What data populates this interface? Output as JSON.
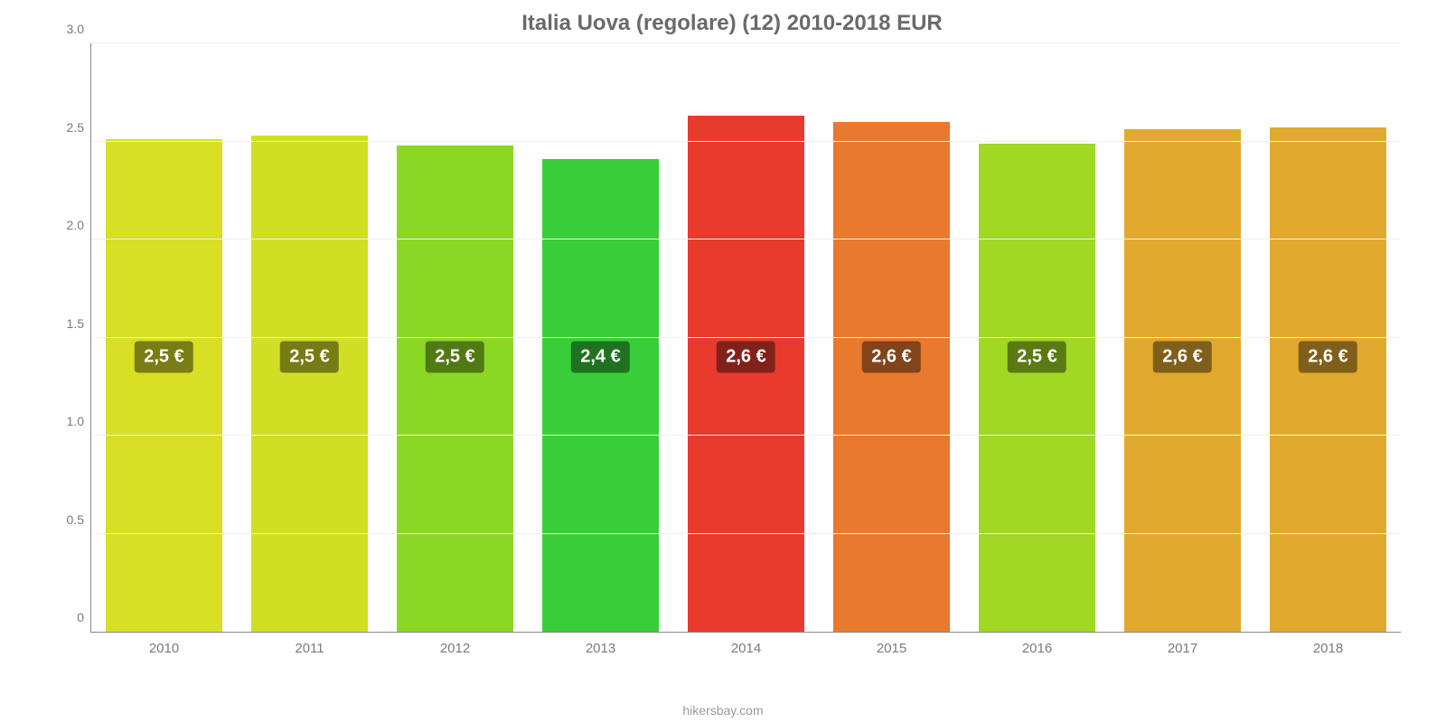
{
  "chart": {
    "type": "bar",
    "title": "Italia Uova (regolare) (12) 2010-2018 EUR",
    "title_fontsize": 24,
    "title_color": "#6a6a6a",
    "background_color": "#ffffff",
    "grid_color": "#f1f1f1",
    "axis_color": "#888888",
    "tick_label_color": "#7a7a7a",
    "tick_fontsize": 14,
    "ylim_min": 0,
    "ylim_max": 3.0,
    "yticks": [
      {
        "v": 0,
        "label": "0"
      },
      {
        "v": 0.5,
        "label": "0.5"
      },
      {
        "v": 1.0,
        "label": "1.0"
      },
      {
        "v": 1.5,
        "label": "1.5"
      },
      {
        "v": 2.0,
        "label": "2.0"
      },
      {
        "v": 2.5,
        "label": "2.5"
      },
      {
        "v": 3.0,
        "label": "3.0"
      }
    ],
    "bar_width_pct": 80,
    "value_label_fontsize": 20,
    "value_label_text_color": "#ffffff",
    "value_label_y_value": 1.4,
    "xtick_fontsize": 15,
    "categories": [
      "2010",
      "2011",
      "2012",
      "2013",
      "2014",
      "2015",
      "2016",
      "2017",
      "2018"
    ],
    "values": [
      2.51,
      2.53,
      2.48,
      2.41,
      2.63,
      2.6,
      2.49,
      2.56,
      2.57
    ],
    "value_labels": [
      "2,5 €",
      "2,5 €",
      "2,5 €",
      "2,4 €",
      "2,6 €",
      "2,6 €",
      "2,5 €",
      "2,6 €",
      "2,6 €"
    ],
    "bar_colors": [
      "#d8df24",
      "#d0df24",
      "#8ad824",
      "#39ce39",
      "#e83b2e",
      "#e8792e",
      "#a0d824",
      "#e1aa2e",
      "#e1aa2e"
    ],
    "value_label_bg_colors": [
      "#7a7c14",
      "#767c14",
      "#4f7a14",
      "#1f7320",
      "#82211a",
      "#82441a",
      "#5b7a14",
      "#7f5f1a",
      "#7f5f1a"
    ],
    "source_text": "hikersbay.com",
    "source_fontsize": 14,
    "source_color": "#9a9a9a"
  }
}
